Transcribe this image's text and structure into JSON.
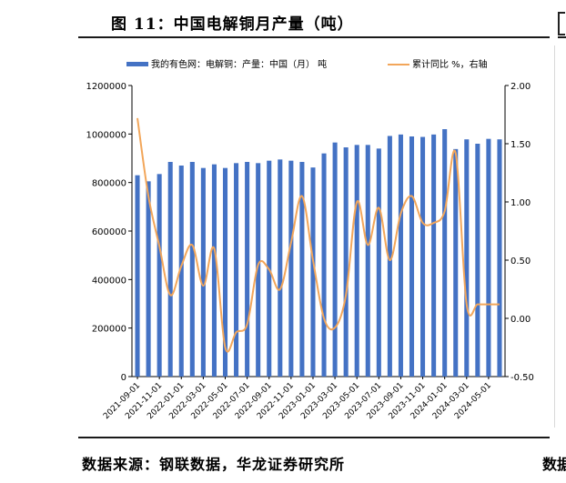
{
  "figure": {
    "title": "图 11：中国电解铜月产量（吨）",
    "source": "数据来源：钢联数据，华龙证券研究所",
    "right_source_fragment": "数据"
  },
  "chart_data": {
    "type": "bar",
    "title": "图 11：中国电解铜月产量（吨）",
    "legend_position": "top",
    "categories": [
      "2021-09-01",
      "2021-10-01",
      "2021-11-01",
      "2021-12-01",
      "2022-01-01",
      "2022-02-01",
      "2022-03-01",
      "2022-04-01",
      "2022-05-01",
      "2022-06-01",
      "2022-07-01",
      "2022-08-01",
      "2022-09-01",
      "2022-10-01",
      "2022-11-01",
      "2022-12-01",
      "2023-01-01",
      "2023-02-01",
      "2023-03-01",
      "2023-04-01",
      "2023-05-01",
      "2023-06-01",
      "2023-07-01",
      "2023-08-01",
      "2023-09-01",
      "2023-10-01",
      "2023-11-01",
      "2023-12-01",
      "2024-01-01",
      "2024-02-01",
      "2024-03-01",
      "2024-04-01",
      "2024-05-01",
      "2024-06-01"
    ],
    "x_tick_labels": [
      "2021-09-01",
      "2021-11-01",
      "2022-01-01",
      "2022-03-01",
      "2022-05-01",
      "2022-07-01",
      "2022-09-01",
      "2022-11-01",
      "2023-01-01",
      "2023-03-01",
      "2023-05-01",
      "2023-07-01",
      "2023-09-01",
      "2023-11-01",
      "2024-01-01",
      "2024-03-01",
      "2024-05-01"
    ],
    "series": [
      {
        "name": "我的有色网：电解铜：产量：中国（月） 吨",
        "axis": "left",
        "kind": "bar",
        "color": "#4472C4",
        "values": [
          830000,
          805000,
          835000,
          885000,
          870000,
          885000,
          860000,
          875000,
          860000,
          880000,
          885000,
          880000,
          890000,
          895000,
          890000,
          885000,
          862000,
          920000,
          965000,
          945000,
          955000,
          955000,
          940000,
          992000,
          998000,
          990000,
          988000,
          998000,
          1020000,
          938000,
          978000,
          960000,
          980000,
          978000
        ]
      },
      {
        "name": "累计同比 %，右轴",
        "axis": "right",
        "kind": "line",
        "color": "#F2A65A",
        "values": [
          1.72,
          1.05,
          0.62,
          0.2,
          0.45,
          0.63,
          0.28,
          0.6,
          -0.25,
          -0.12,
          -0.05,
          0.46,
          0.42,
          0.25,
          0.65,
          1.05,
          0.5,
          0.0,
          -0.08,
          0.2,
          1.0,
          0.63,
          0.95,
          0.5,
          0.9,
          1.05,
          0.82,
          0.82,
          0.92,
          1.42,
          0.12,
          0.12,
          0.12,
          0.12
        ]
      }
    ],
    "y_left": {
      "lim": [
        0,
        1200000
      ],
      "ticks": [
        "0",
        "200000",
        "400000",
        "600000",
        "800000",
        "1000000",
        "1200000"
      ]
    },
    "y_right": {
      "lim": [
        -0.5,
        2.0
      ],
      "ticks": [
        "-0.50",
        "0.00",
        "0.50",
        "1.00",
        "1.50",
        "2.00"
      ]
    },
    "grid": false
  }
}
